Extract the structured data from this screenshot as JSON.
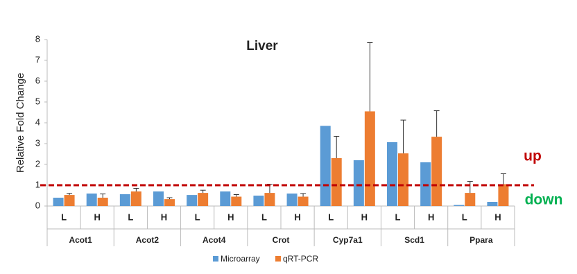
{
  "chart_data": {
    "type": "bar",
    "title": "Liver",
    "ylabel": "Relative Fold Change",
    "categories": [
      "L",
      "H",
      "L",
      "H",
      "L",
      "H",
      "L",
      "H",
      "L",
      "H",
      "L",
      "H",
      "L",
      "H"
    ],
    "groups": [
      "Acot1",
      "Acot2",
      "Acot4",
      "Crot",
      "Cyp7a1",
      "Scd1",
      "Ppara"
    ],
    "series": [
      {
        "name": "Microarray",
        "color": "#5b9bd5",
        "values": [
          0.4,
          0.6,
          0.57,
          0.7,
          0.53,
          0.7,
          0.5,
          0.6,
          3.85,
          2.2,
          3.07,
          2.1,
          0.05,
          0.2
        ]
      },
      {
        "name": "qRT-PCR",
        "color": "#ed7d31",
        "values": [
          0.53,
          0.4,
          0.7,
          0.33,
          0.63,
          0.45,
          0.63,
          0.45,
          2.3,
          4.55,
          2.53,
          3.33,
          0.63,
          1.05
        ],
        "errors": [
          0.08,
          0.18,
          0.15,
          0.07,
          0.13,
          0.1,
          0.42,
          0.15,
          1.05,
          3.3,
          1.6,
          1.25,
          0.55,
          0.5
        ]
      }
    ],
    "ylim": [
      0,
      8
    ],
    "yticks": [
      0,
      1,
      2,
      3,
      4,
      5,
      6,
      7,
      8
    ],
    "reference_line": 1,
    "reference_color": "#c00000",
    "annotations": [
      {
        "text": "up",
        "color": "#c00000"
      },
      {
        "text": "down",
        "color": "#00b050"
      }
    ],
    "legend": "bottom"
  }
}
